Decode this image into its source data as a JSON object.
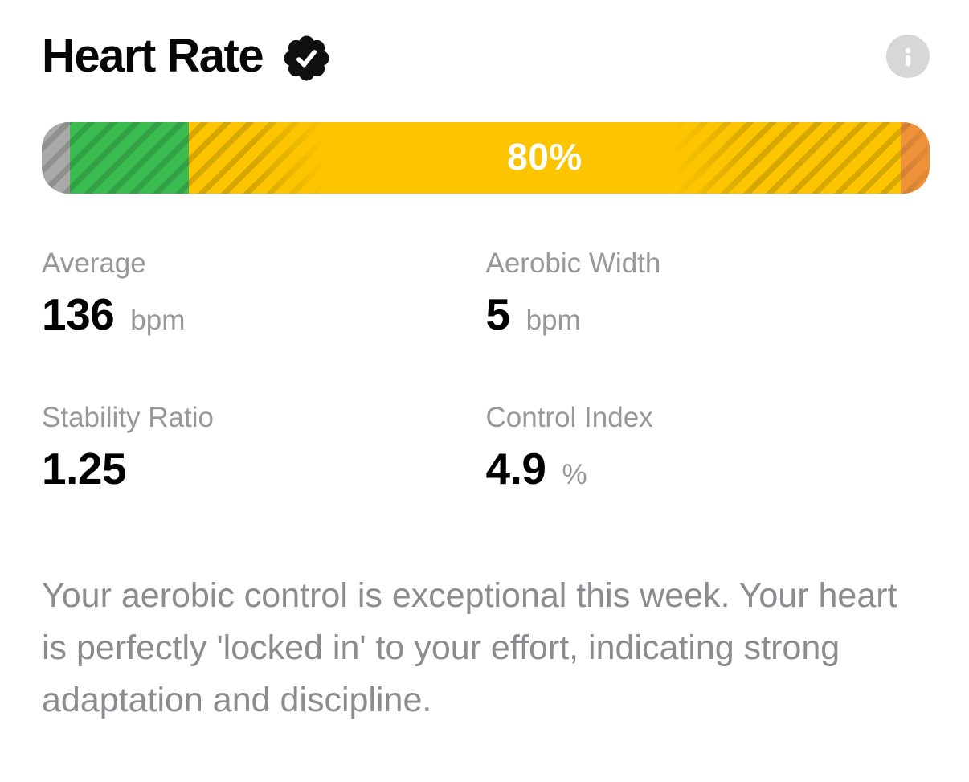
{
  "header": {
    "title": "Heart Rate",
    "verified_badge": "checkmark-seal",
    "info_label": "i"
  },
  "gauge": {
    "label": "80%",
    "segments": [
      {
        "name": "below-zone-cap",
        "color": "#a9a9a9",
        "width_pct": 3.2,
        "has_label": false
      },
      {
        "name": "green-zone",
        "color": "#3bbc51",
        "width_pct": 13.4,
        "has_label": false
      },
      {
        "name": "yellow-zone",
        "color": "#fcc500",
        "width_pct": 80.1,
        "has_label": true
      },
      {
        "name": "above-zone-cap",
        "color": "#f0923a",
        "width_pct": 3.3,
        "has_label": false
      }
    ]
  },
  "stats": [
    {
      "label": "Average",
      "value": "136",
      "unit": "bpm"
    },
    {
      "label": "Aerobic Width",
      "value": "5",
      "unit": "bpm"
    },
    {
      "label": "Stability Ratio",
      "value": "1.25",
      "unit": ""
    },
    {
      "label": "Control Index",
      "value": "4.9",
      "unit": "%"
    }
  ],
  "summary": {
    "text": "Your aerobic control is exceptional this week. Your heart is perfectly 'locked in' to your effort, indicating strong adaptation and discipline."
  }
}
